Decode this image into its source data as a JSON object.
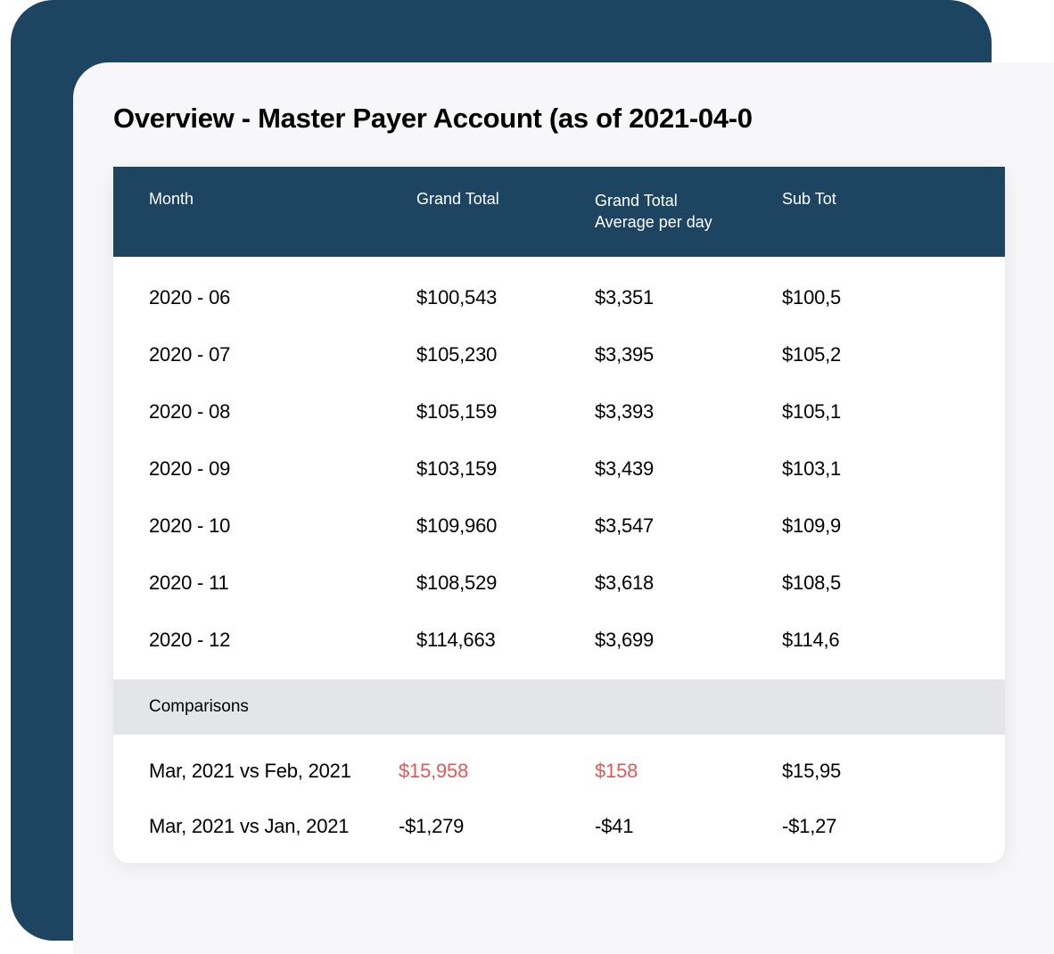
{
  "title": "Overview - Master Payer Account (as of 2021-04-0",
  "colors": {
    "outer_bg": "#1d4562",
    "inner_bg": "#f7f7fa",
    "table_header_bg": "#1d4562",
    "table_header_text": "#ffffff",
    "section_bg": "#e4e5e9",
    "text": "#000000",
    "negative": "#dc5a5a"
  },
  "table": {
    "columns": [
      "Month",
      "Grand Total",
      "Grand Total\nAverage per day",
      "Sub Tot"
    ],
    "rows": [
      {
        "month": "2020 - 06",
        "grand_total": "$100,543",
        "avg": "$3,351",
        "sub": "$100,5"
      },
      {
        "month": "2020 - 07",
        "grand_total": "$105,230",
        "avg": "$3,395",
        "sub": "$105,2"
      },
      {
        "month": "2020 - 08",
        "grand_total": "$105,159",
        "avg": "$3,393",
        "sub": "$105,1"
      },
      {
        "month": "2020 - 09",
        "grand_total": "$103,159",
        "avg": "$3,439",
        "sub": "$103,1"
      },
      {
        "month": "2020 - 10",
        "grand_total": "$109,960",
        "avg": "$3,547",
        "sub": "$109,9"
      },
      {
        "month": "2020 - 11",
        "grand_total": "$108,529",
        "avg": "$3,618",
        "sub": "$108,5"
      },
      {
        "month": "2020 - 12",
        "grand_total": "$114,663",
        "avg": "$3,699",
        "sub": "$114,6"
      }
    ],
    "comparisons_label": "Comparisons",
    "comparisons": [
      {
        "label": "Mar, 2021 vs Feb, 2021",
        "grand_total": "$15,958",
        "avg": "$158",
        "sub": "$15,95",
        "highlight": true
      },
      {
        "label": "Mar, 2021 vs Jan, 2021",
        "grand_total": "-$1,279",
        "avg": "-$41",
        "sub": "-$1,27",
        "highlight": false
      }
    ]
  }
}
